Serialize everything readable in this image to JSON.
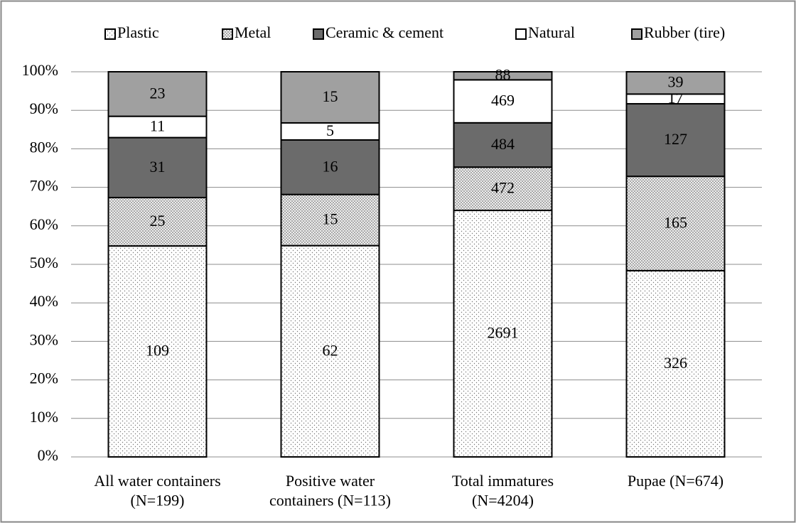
{
  "chart_data": {
    "type": "bar",
    "stacking": "percent",
    "categories": [
      "All water containers\n(N=199)",
      "Positive water\ncontainers (N=113)",
      "Total immatures\n(N=4204)",
      "Pupae (N=674)"
    ],
    "series": [
      {
        "name": "Plastic",
        "color": "#ffffff",
        "pattern": "sparse-dots",
        "values": [
          109,
          62,
          2691,
          326
        ]
      },
      {
        "name": "Metal",
        "color": "#e6e6e6",
        "pattern": "dense-dots",
        "values": [
          25,
          15,
          472,
          165
        ]
      },
      {
        "name": "Ceramic & cement",
        "color": "#6b6b6b",
        "values": [
          31,
          16,
          484,
          127
        ]
      },
      {
        "name": "Natural",
        "color": "#ffffff",
        "values": [
          11,
          5,
          469,
          17
        ]
      },
      {
        "name": "Rubber (tire)",
        "color": "#a0a0a0",
        "values": [
          23,
          15,
          88,
          39
        ]
      }
    ],
    "ylim": [
      0,
      100
    ],
    "yticks": [
      {
        "value": 0,
        "label": "0%"
      },
      {
        "value": 10,
        "label": "10%"
      },
      {
        "value": 20,
        "label": "20%"
      },
      {
        "value": 30,
        "label": "30%"
      },
      {
        "value": 40,
        "label": "40%"
      },
      {
        "value": 50,
        "label": "50%"
      },
      {
        "value": 60,
        "label": "60%"
      },
      {
        "value": 70,
        "label": "70%"
      },
      {
        "value": 80,
        "label": "80%"
      },
      {
        "value": 90,
        "label": "90%"
      },
      {
        "value": 100,
        "label": "100%"
      }
    ],
    "grid": true,
    "legend": "top"
  }
}
